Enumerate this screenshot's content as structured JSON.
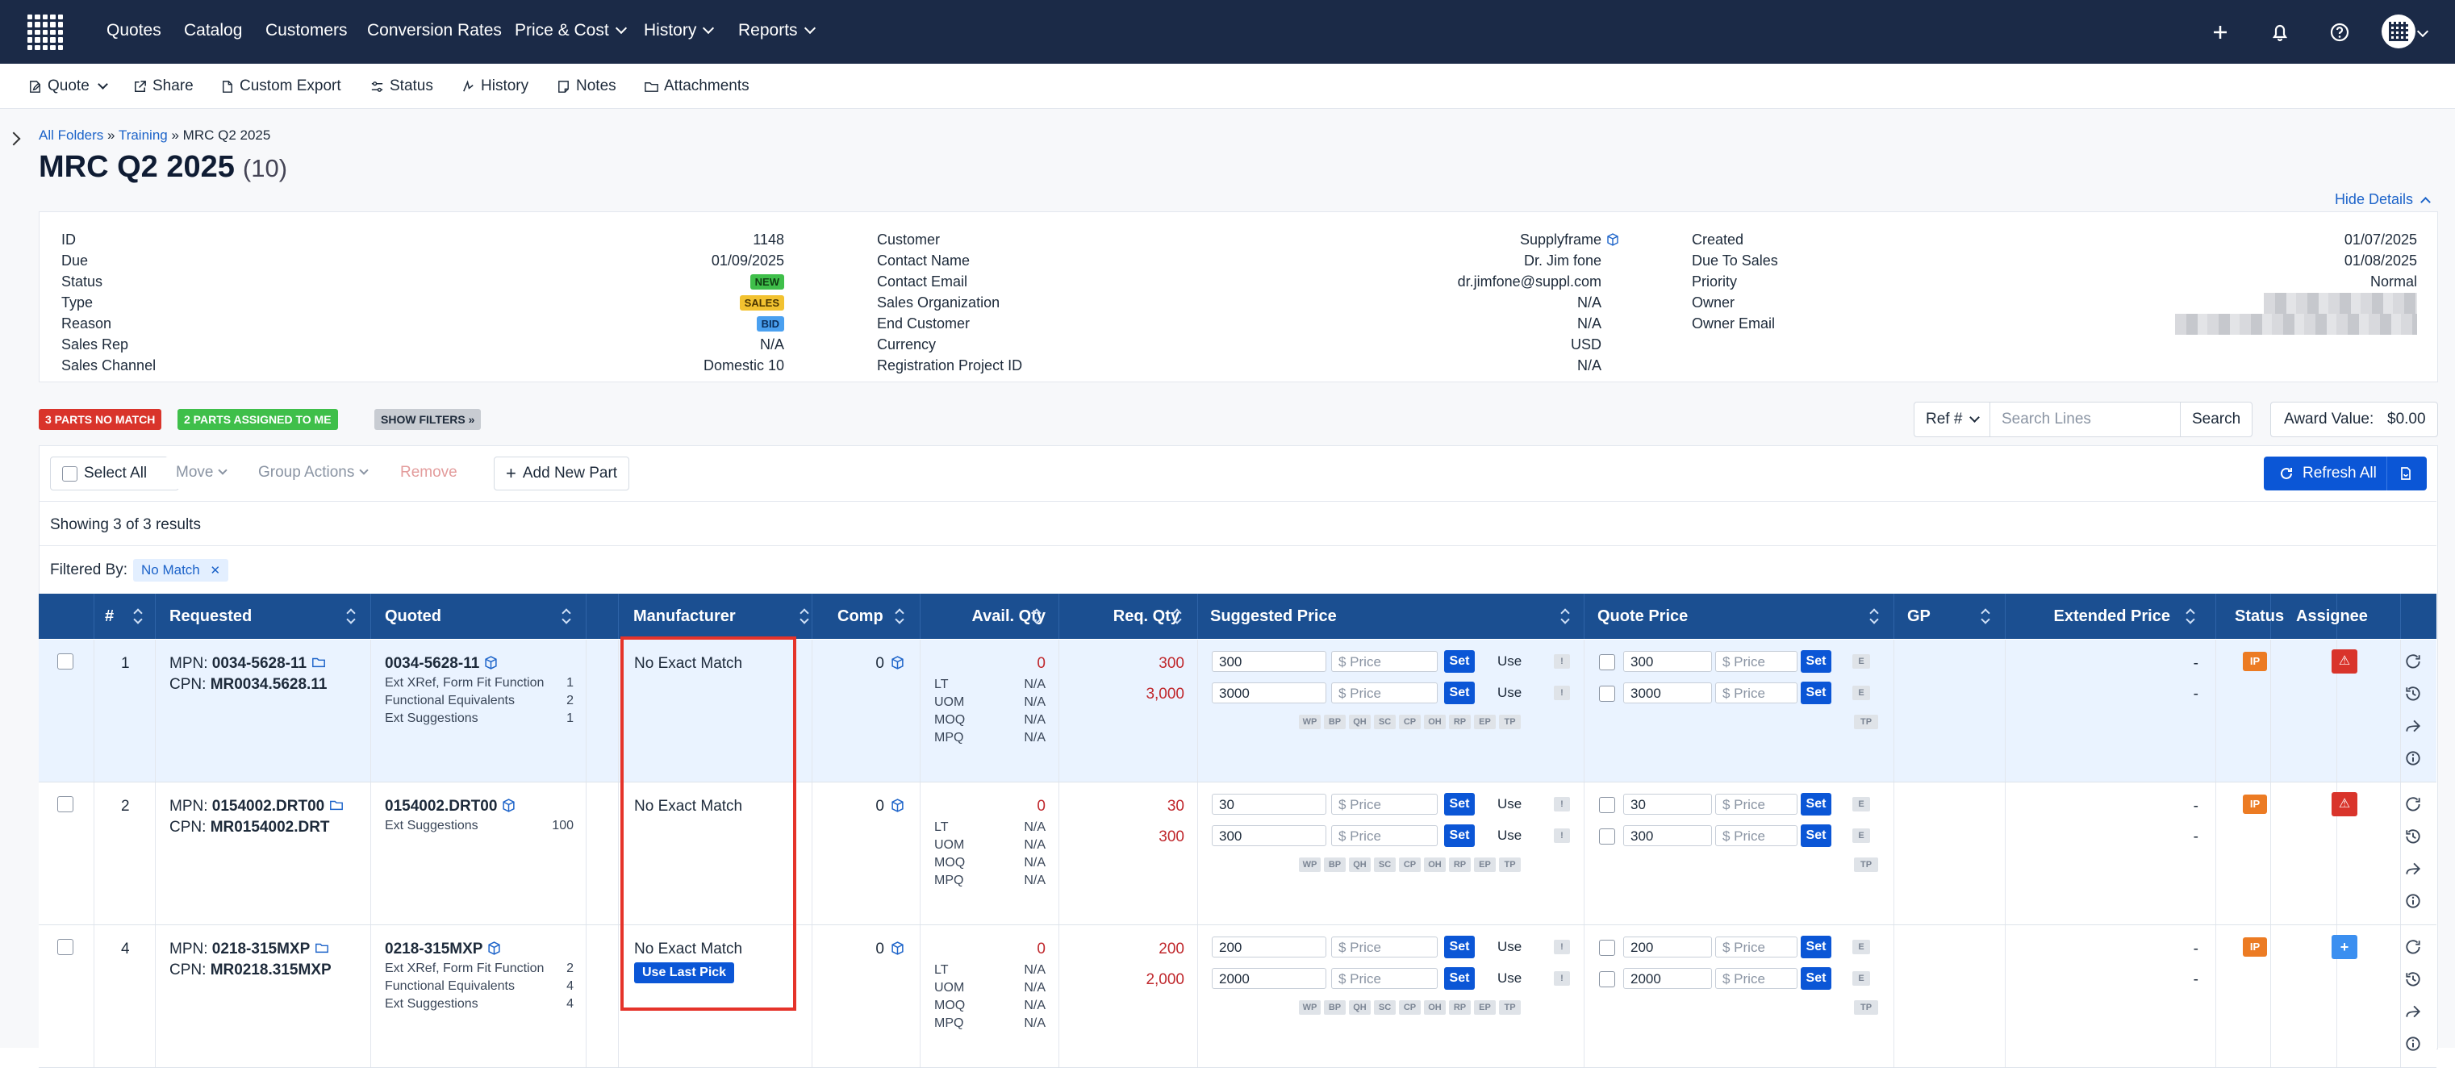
{
  "nav": {
    "items": [
      "Quotes",
      "Catalog",
      "Customers",
      "Conversion Rates",
      "Price & Cost",
      "History",
      "Reports"
    ]
  },
  "toolbar": {
    "quote": "Quote",
    "share": "Share",
    "custom_export": "Custom Export",
    "status": "Status",
    "history": "History",
    "notes": "Notes",
    "attachments": "Attachments"
  },
  "breadcrumb": {
    "all_folders": "All Folders",
    "sep": "»",
    "training": "Training",
    "current": "MRC Q2 2025"
  },
  "title": {
    "name": "MRC Q2 2025",
    "count": "(10)"
  },
  "hide_details": "Hide Details",
  "details": {
    "col1": [
      {
        "label": "ID",
        "value": "1148"
      },
      {
        "label": "Due",
        "value": "01/09/2025"
      },
      {
        "label": "Status",
        "value": "NEW"
      },
      {
        "label": "Type",
        "value": "SALES"
      },
      {
        "label": "Reason",
        "value": "BID"
      },
      {
        "label": "Sales Rep",
        "value": "N/A"
      },
      {
        "label": "Sales Channel",
        "value": "Domestic 10"
      }
    ],
    "col2": [
      {
        "label": "Customer",
        "value": "Supplyframe"
      },
      {
        "label": "Contact Name",
        "value": "Dr. Jim fone"
      },
      {
        "label": "Contact Email",
        "value": "dr.jimfone@suppl.com"
      },
      {
        "label": "Sales Organization",
        "value": "N/A"
      },
      {
        "label": "End Customer",
        "value": "N/A"
      },
      {
        "label": "Currency",
        "value": "USD"
      },
      {
        "label": "Registration Project ID",
        "value": "N/A"
      }
    ],
    "col3": [
      {
        "label": "Created",
        "value": "01/07/2025"
      },
      {
        "label": "Due To Sales",
        "value": "01/08/2025"
      },
      {
        "label": "Priority",
        "value": "Normal"
      },
      {
        "label": "Owner",
        "value": ""
      },
      {
        "label": "Owner Email",
        "value": ""
      }
    ],
    "colors": {
      "new": "#3fbf4a",
      "sales": "#f2c230",
      "bid": "#4aa0f0"
    }
  },
  "filters": {
    "chip_nomatch": "3 PARTS NO MATCH",
    "chip_assigned": "2 PARTS ASSIGNED TO ME",
    "chip_show": "SHOW FILTERS »",
    "ref": "Ref #",
    "search_placeholder": "Search Lines",
    "search_btn": "Search",
    "award": "Award Value:",
    "award_value": "$0.00"
  },
  "actions": {
    "select_all": "Select All",
    "move": "Move",
    "group_actions": "Group Actions",
    "remove": "Remove",
    "add_part": "Add New Part",
    "refresh_all": "Refresh All"
  },
  "showing": "Showing 3 of 3 results",
  "filtered_by": "Filtered By:",
  "filter_tag": "No Match",
  "columns": [
    "#",
    "Requested",
    "Quoted",
    "Manufacturer",
    "Comp",
    "Avail. Qty",
    "Req. Qty",
    "Suggested Price",
    "Quote Price",
    "GP",
    "Extended Price",
    "Status",
    "Assignee"
  ],
  "detail_labels": {
    "lt": "LT",
    "uom": "UOM",
    "moq": "MOQ",
    "mpq": "MPQ",
    "na": "N/A",
    "price_placeholder": "$ Price",
    "set": "Set",
    "use": "Use",
    "excl": "!",
    "e": "E",
    "tp": "TP",
    "dash": "-",
    "ip": "IP"
  },
  "mini_buttons": [
    "WP",
    "BP",
    "QH",
    "SC",
    "CP",
    "OH",
    "RP",
    "EP",
    "TP"
  ],
  "rows": [
    {
      "num": "1",
      "mpn_label": "MPN:",
      "mpn": "0034-5628-11",
      "cpn_label": "CPN:",
      "cpn": "MR0034.5628.11",
      "quoted": "0034-5628-11",
      "quoted_sub": [
        {
          "label": "Ext XRef, Form Fit Function",
          "count": "1"
        },
        {
          "label": "Functional Equivalents",
          "count": "2"
        },
        {
          "label": "Ext Suggestions",
          "count": "1"
        }
      ],
      "manufacturer": "No Exact Match",
      "comp": "0",
      "avail": "0",
      "req": [
        "300",
        "3,000"
      ],
      "sugg": [
        "300",
        "3000"
      ],
      "quote": [
        "300",
        "3000"
      ],
      "assignee": "warning"
    },
    {
      "num": "2",
      "mpn_label": "MPN:",
      "mpn": "0154002.DRT00",
      "cpn_label": "CPN:",
      "cpn": "MR0154002.DRT",
      "quoted": "0154002.DRT00",
      "quoted_sub": [
        {
          "label": "Ext Suggestions",
          "count": "100"
        }
      ],
      "manufacturer": "No Exact Match",
      "comp": "0",
      "avail": "0",
      "req": [
        "30",
        "300"
      ],
      "sugg": [
        "30",
        "300"
      ],
      "quote": [
        "30",
        "300"
      ],
      "assignee": "warning"
    },
    {
      "num": "4",
      "mpn_label": "MPN:",
      "mpn": "0218-315MXP",
      "cpn_label": "CPN:",
      "cpn": "MR0218.315MXP",
      "quoted": "0218-315MXP",
      "quoted_sub": [
        {
          "label": "Ext XRef, Form Fit Function",
          "count": "2"
        },
        {
          "label": "Functional Equivalents",
          "count": "4"
        },
        {
          "label": "Ext Suggestions",
          "count": "4"
        }
      ],
      "manufacturer": "No Exact Match",
      "use_last_pick": "Use Last Pick",
      "comp": "0",
      "avail": "0",
      "req": [
        "200",
        "2,000"
      ],
      "sugg": [
        "200",
        "2000"
      ],
      "quote": [
        "200",
        "2000"
      ],
      "assignee": "add"
    }
  ]
}
